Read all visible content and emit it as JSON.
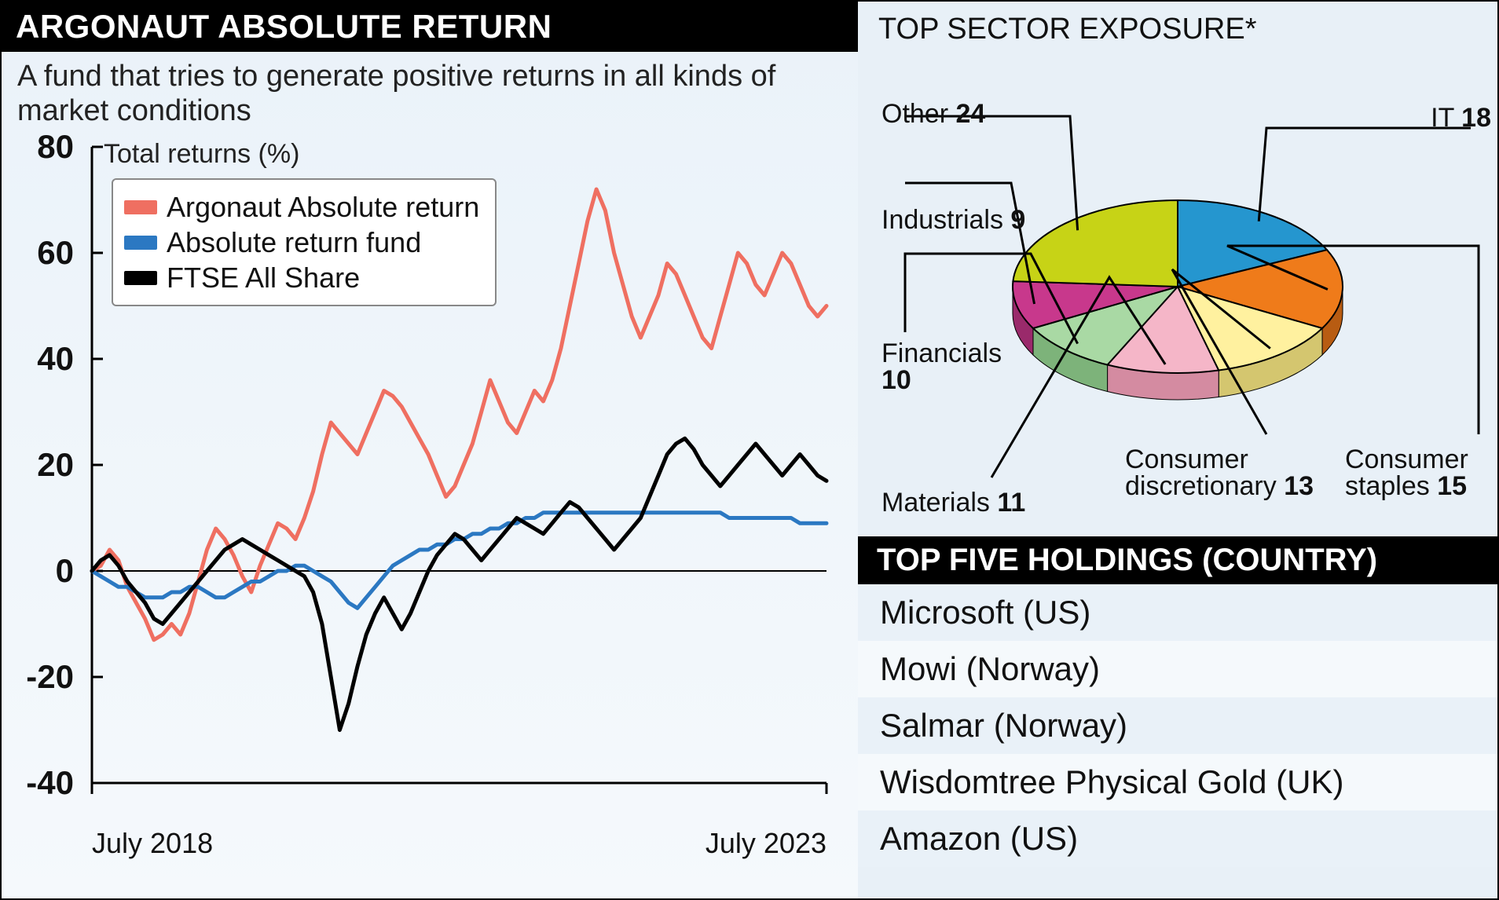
{
  "left": {
    "title": "ARGONAUT ABSOLUTE RETURN",
    "subtitle": "A fund that tries to generate positive returns in all kinds of market conditions",
    "ylabel": "Total returns (%)",
    "background_gradient": [
      "#eaf2f9",
      "#f5f9fc"
    ],
    "legend": [
      {
        "label": "Argonaut Absolute return",
        "color": "#ef6f61"
      },
      {
        "label": "Absolute return fund",
        "color": "#2b78c2"
      },
      {
        "label": "FTSE All Share",
        "color": "#000000"
      }
    ],
    "chart": {
      "type": "line",
      "ylim": [
        -40,
        80
      ],
      "yticks": [
        -40,
        -20,
        0,
        20,
        40,
        60,
        80
      ],
      "xlabels": [
        "July 2018",
        "July 2023"
      ],
      "line_width": 5,
      "axis_color": "#000000",
      "grid_color": "#000000",
      "series": [
        {
          "name": "argonaut",
          "color": "#ef6f61",
          "values": [
            0,
            1,
            4,
            2,
            -3,
            -6,
            -9,
            -13,
            -12,
            -10,
            -12,
            -8,
            -2,
            4,
            8,
            6,
            3,
            -1,
            -4,
            1,
            5,
            9,
            8,
            6,
            10,
            15,
            22,
            28,
            26,
            24,
            22,
            26,
            30,
            34,
            33,
            31,
            28,
            25,
            22,
            18,
            14,
            16,
            20,
            24,
            30,
            36,
            32,
            28,
            26,
            30,
            34,
            32,
            36,
            42,
            50,
            58,
            66,
            72,
            68,
            60,
            54,
            48,
            44,
            48,
            52,
            58,
            56,
            52,
            48,
            44,
            42,
            48,
            54,
            60,
            58,
            54,
            52,
            56,
            60,
            58,
            54,
            50,
            48,
            50
          ]
        },
        {
          "name": "absolute_fund",
          "color": "#2b78c2",
          "values": [
            0,
            -1,
            -2,
            -3,
            -3,
            -4,
            -5,
            -5,
            -5,
            -4,
            -4,
            -3,
            -3,
            -4,
            -5,
            -5,
            -4,
            -3,
            -2,
            -2,
            -1,
            0,
            0,
            1,
            1,
            0,
            -1,
            -2,
            -4,
            -6,
            -7,
            -5,
            -3,
            -1,
            1,
            2,
            3,
            4,
            4,
            5,
            5,
            6,
            6,
            7,
            7,
            8,
            8,
            9,
            9,
            10,
            10,
            11,
            11,
            11,
            11,
            11,
            11,
            11,
            11,
            11,
            11,
            11,
            11,
            11,
            11,
            11,
            11,
            11,
            11,
            11,
            11,
            11,
            10,
            10,
            10,
            10,
            10,
            10,
            10,
            10,
            9,
            9,
            9,
            9
          ]
        },
        {
          "name": "ftse",
          "color": "#000000",
          "values": [
            0,
            2,
            3,
            1,
            -2,
            -4,
            -6,
            -9,
            -10,
            -8,
            -6,
            -4,
            -2,
            0,
            2,
            4,
            5,
            6,
            5,
            4,
            3,
            2,
            1,
            0,
            -1,
            -4,
            -10,
            -20,
            -30,
            -25,
            -18,
            -12,
            -8,
            -5,
            -8,
            -11,
            -8,
            -4,
            0,
            3,
            5,
            7,
            6,
            4,
            2,
            4,
            6,
            8,
            10,
            9,
            8,
            7,
            9,
            11,
            13,
            12,
            10,
            8,
            6,
            4,
            6,
            8,
            10,
            14,
            18,
            22,
            24,
            25,
            23,
            20,
            18,
            16,
            18,
            20,
            22,
            24,
            22,
            20,
            18,
            20,
            22,
            20,
            18,
            17
          ]
        }
      ]
    }
  },
  "right": {
    "sector_title": "TOP SECTOR EXPOSURE*",
    "pie": {
      "type": "pie",
      "center_color_stroke": "#000000",
      "slices": [
        {
          "label": "IT",
          "value": 18,
          "color": "#2596cf",
          "side_color": "#1a6f99"
        },
        {
          "label": "Consumer staples",
          "value": 15,
          "color": "#ef7b1a",
          "side_color": "#b85c12"
        },
        {
          "label": "Consumer discretionary",
          "value": 13,
          "color": "#fff19f",
          "side_color": "#d4c66f"
        },
        {
          "label": "Materials",
          "value": 11,
          "color": "#f5b6c8",
          "side_color": "#d48ba1"
        },
        {
          "label": "Financials",
          "value": 10,
          "color": "#a9d9a4",
          "side_color": "#7db37a"
        },
        {
          "label": "Industrials",
          "value": 9,
          "color": "#c8388c",
          "side_color": "#9a2a6b"
        },
        {
          "label": "Other",
          "value": 24,
          "color": "#c7d316",
          "side_color": "#9aa310"
        }
      ]
    },
    "holdings_header": "TOP FIVE HOLDINGS (COUNTRY)",
    "holdings": [
      "Microsoft (US)",
      "Mowi (Norway)",
      "Salmar (Norway)",
      "Wisdomtree Physical Gold (UK)",
      "Amazon (US)"
    ]
  }
}
